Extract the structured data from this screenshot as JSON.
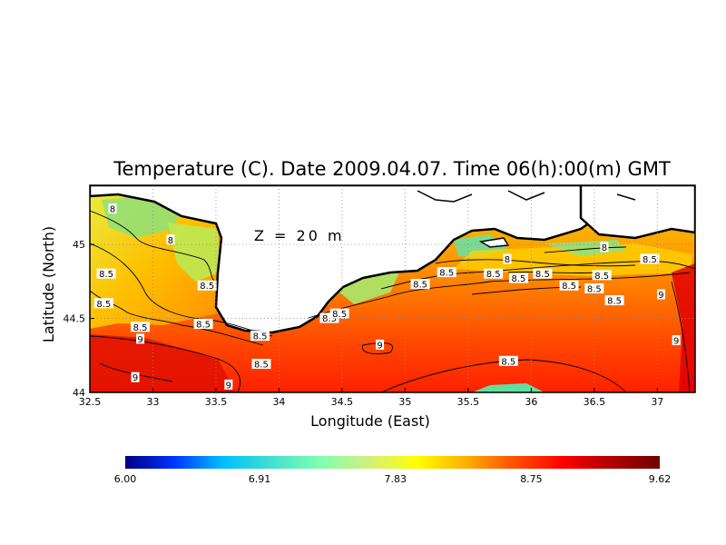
{
  "map": {
    "title": "Temperature (C). Date 2009.04.07. Time 06(h):00(m) GMT",
    "depth_label": "Z = 20 m",
    "xlabel": "Longitude (East)",
    "ylabel": "Latitude (North)",
    "xlim": [
      32.5,
      37.3
    ],
    "ylim": [
      44.0,
      45.4
    ],
    "x_ticks": [
      "32.5",
      "33",
      "33.5",
      "34",
      "34.5",
      "35",
      "35.5",
      "36",
      "36.5",
      "37"
    ],
    "y_ticks": [
      "44",
      "44.5",
      "45"
    ],
    "contour_labels": [
      {
        "text": "8",
        "lon": 32.68,
        "lat": 45.24
      },
      {
        "text": "8",
        "lon": 33.14,
        "lat": 45.03
      },
      {
        "text": "8.5",
        "lon": 32.63,
        "lat": 44.8
      },
      {
        "text": "8.5",
        "lon": 32.61,
        "lat": 44.6
      },
      {
        "text": "8.5",
        "lon": 32.9,
        "lat": 44.44
      },
      {
        "text": "9",
        "lon": 32.9,
        "lat": 44.36
      },
      {
        "text": "8.5",
        "lon": 33.4,
        "lat": 44.46
      },
      {
        "text": "8.5",
        "lon": 33.43,
        "lat": 44.72
      },
      {
        "text": "8.5",
        "lon": 33.85,
        "lat": 44.38
      },
      {
        "text": "8.5",
        "lon": 33.86,
        "lat": 44.19
      },
      {
        "text": "9",
        "lon": 32.86,
        "lat": 44.1
      },
      {
        "text": "9",
        "lon": 33.6,
        "lat": 44.05
      },
      {
        "text": "8.5",
        "lon": 34.4,
        "lat": 44.5
      },
      {
        "text": "8.5",
        "lon": 34.48,
        "lat": 44.53
      },
      {
        "text": "9",
        "lon": 34.8,
        "lat": 44.32
      },
      {
        "text": "8.5",
        "lon": 35.12,
        "lat": 44.73
      },
      {
        "text": "8.5",
        "lon": 35.33,
        "lat": 44.81
      },
      {
        "text": "8",
        "lon": 35.81,
        "lat": 44.9
      },
      {
        "text": "8.5",
        "lon": 35.7,
        "lat": 44.8
      },
      {
        "text": "8.5",
        "lon": 35.9,
        "lat": 44.77
      },
      {
        "text": "8.5",
        "lon": 36.09,
        "lat": 44.8
      },
      {
        "text": "8",
        "lon": 36.58,
        "lat": 44.98
      },
      {
        "text": "8.5",
        "lon": 36.56,
        "lat": 44.79
      },
      {
        "text": "8.5",
        "lon": 36.5,
        "lat": 44.7
      },
      {
        "text": "8.5",
        "lon": 36.66,
        "lat": 44.62
      },
      {
        "text": "8.5",
        "lon": 36.3,
        "lat": 44.72
      },
      {
        "text": "8.5",
        "lon": 36.94,
        "lat": 44.9
      },
      {
        "text": "9",
        "lon": 37.03,
        "lat": 44.66
      },
      {
        "text": "9",
        "lon": 37.15,
        "lat": 44.35
      },
      {
        "text": "8.5",
        "lon": 35.82,
        "lat": 44.21
      }
    ]
  },
  "colorbar": {
    "min": 6.0,
    "max": 9.62,
    "tick_labels": [
      "6.00",
      "6.91",
      "7.83",
      "8.75",
      "9.62"
    ],
    "colors": [
      "#000080",
      "#0033ff",
      "#00bfff",
      "#40e0d0",
      "#7fffb0",
      "#d0f080",
      "#ffff00",
      "#ffb000",
      "#ff5000",
      "#ff0000",
      "#b00000",
      "#700000"
    ]
  },
  "colors": {
    "land": "#ffffff",
    "coast": "#000000",
    "grid": "#8c8c8c"
  }
}
